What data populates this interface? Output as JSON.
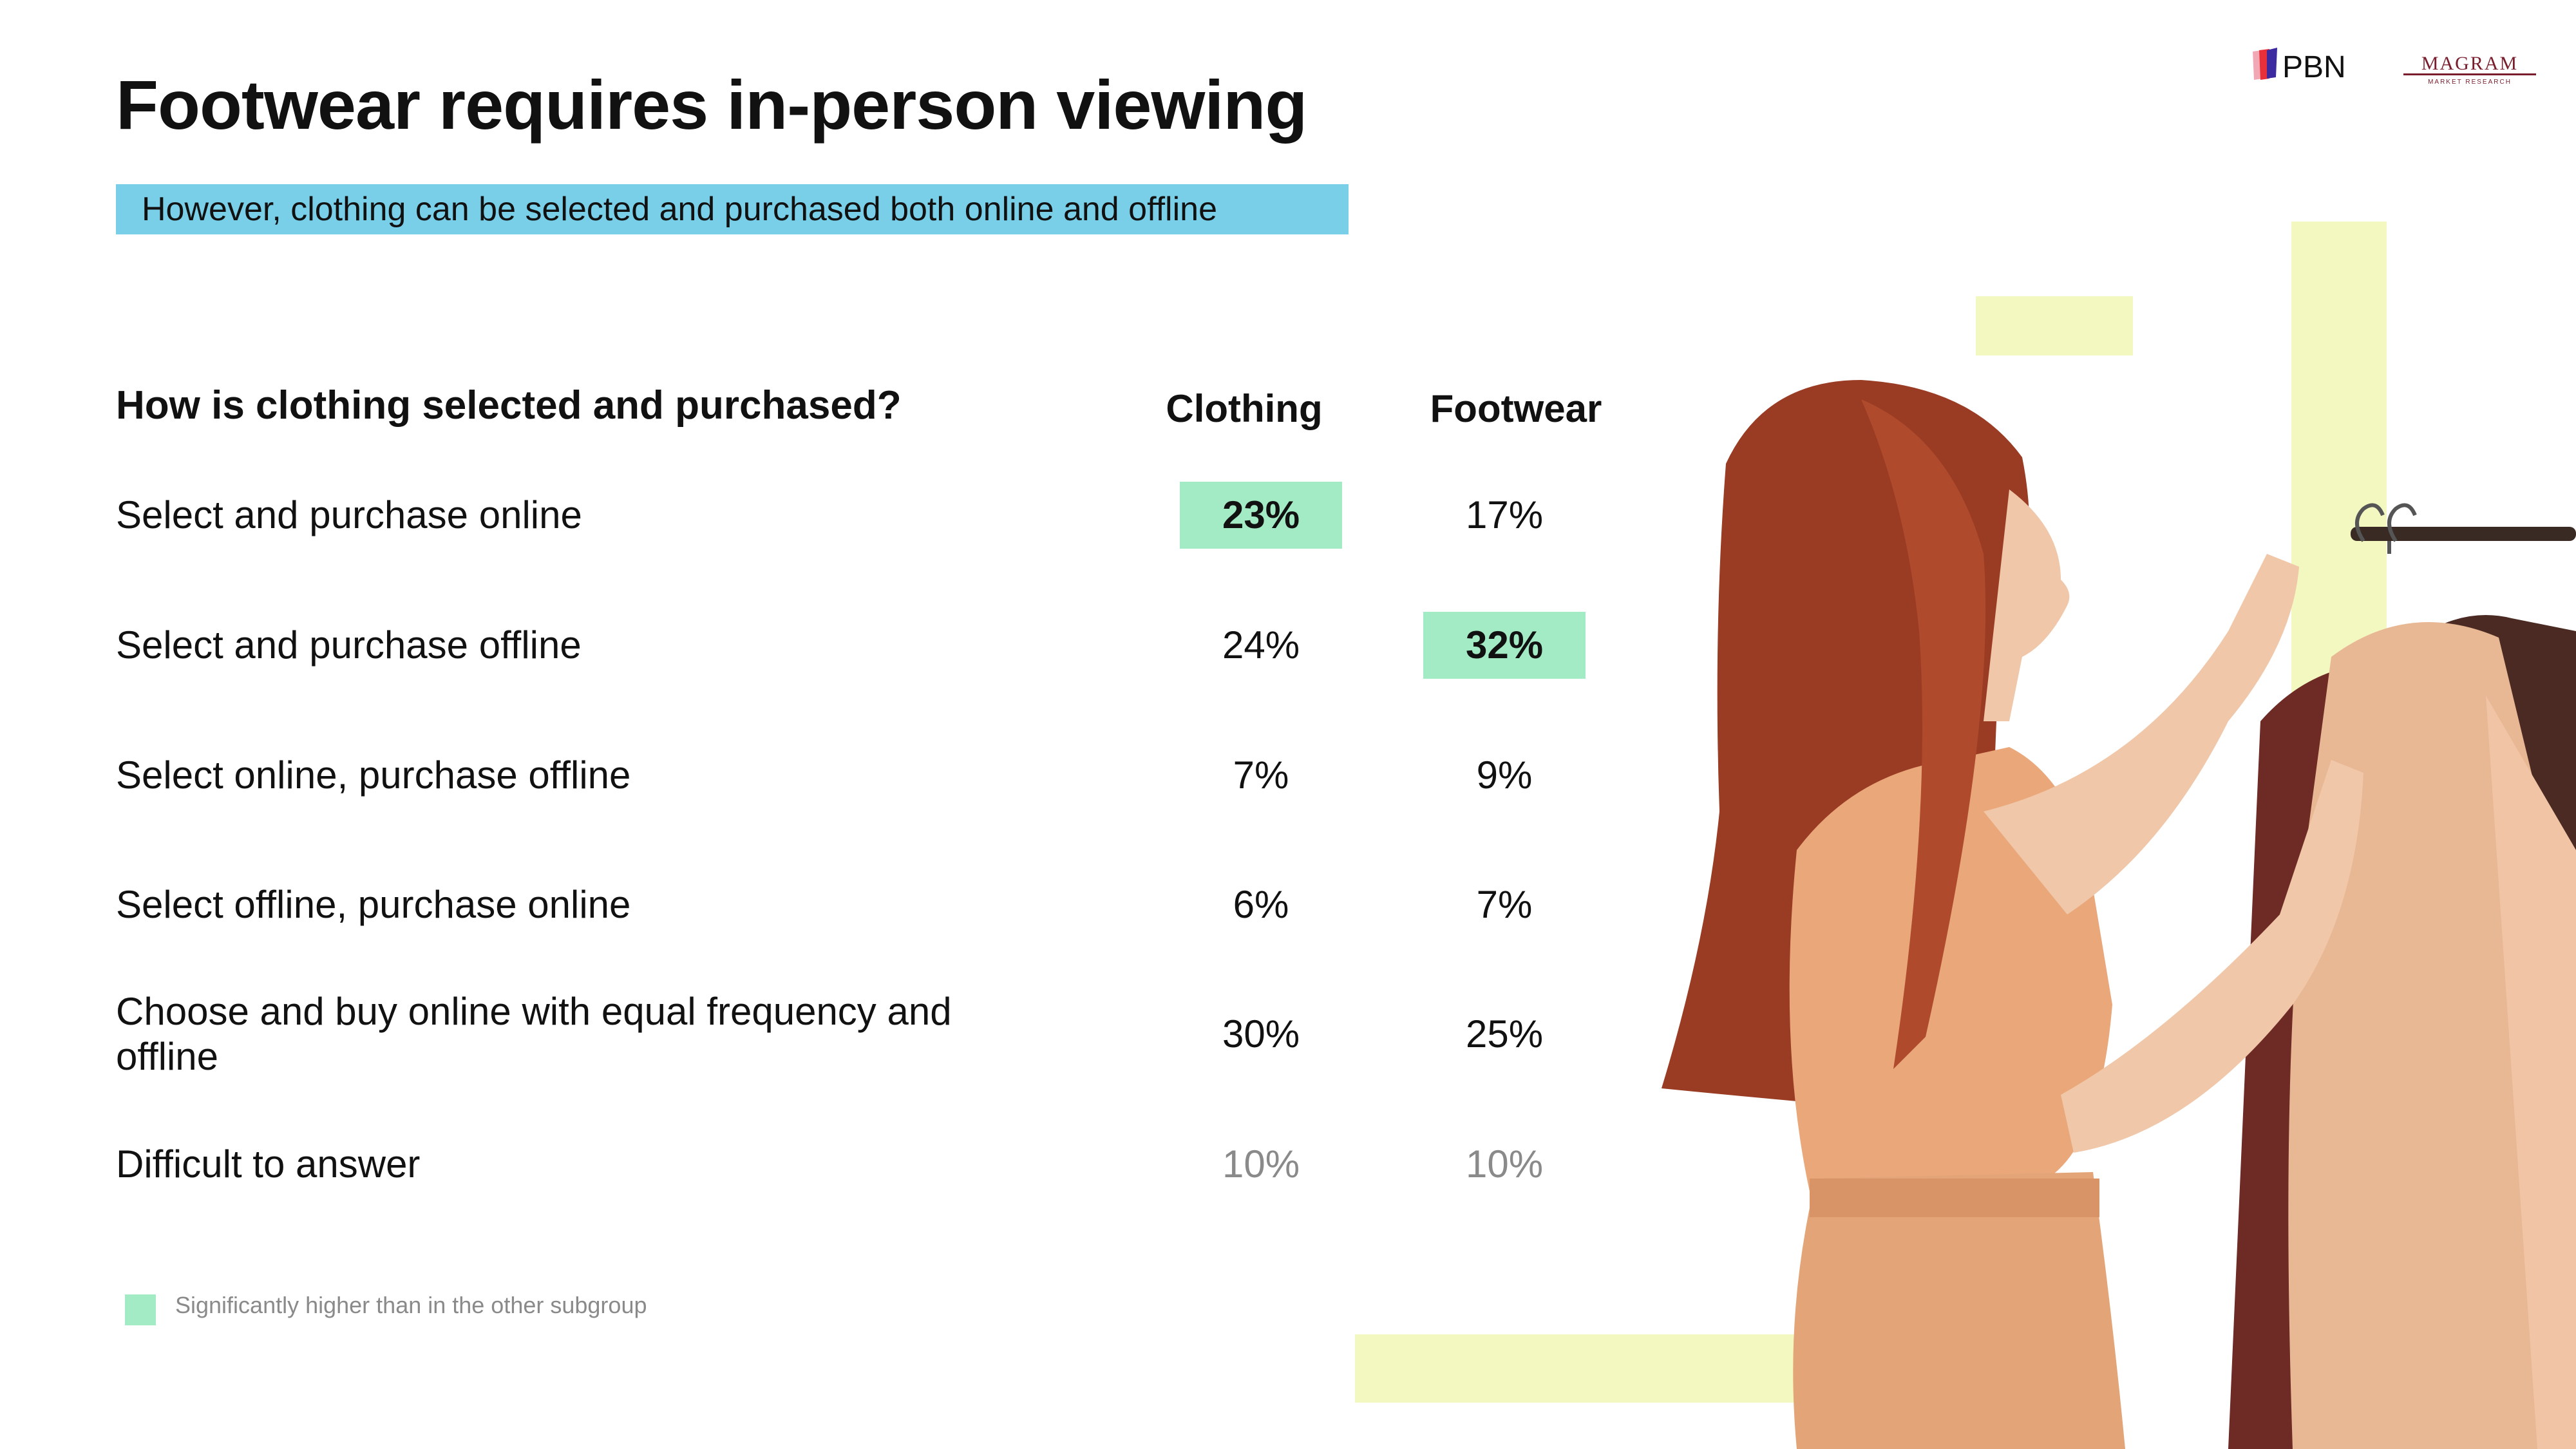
{
  "title": "Footwear requires in-person viewing",
  "subtitle": "However, clothing can be selected and purchased both online and offline",
  "logos": {
    "pbn": "PBN",
    "magram": "MAGRAM",
    "magram_sub": "MARKET RESEARCH"
  },
  "colors": {
    "highlight": "#a3ebc4",
    "subtitle_bg": "#79cfe8",
    "decor": "#f3f7c0"
  },
  "chart_data": {
    "type": "table",
    "title": "How is clothing selected and purchased?",
    "columns": [
      "Clothing",
      "Footwear"
    ],
    "rows": [
      {
        "label": "Select and purchase online",
        "values": [
          "23%",
          "17%"
        ],
        "significant": [
          true,
          false
        ]
      },
      {
        "label": "Select and purchase offline",
        "values": [
          "24%",
          "32%"
        ],
        "significant": [
          false,
          true
        ]
      },
      {
        "label": "Select online, purchase offline",
        "values": [
          "7%",
          "9%"
        ],
        "significant": [
          false,
          false
        ]
      },
      {
        "label": "Select offline, purchase online",
        "values": [
          "6%",
          "7%"
        ],
        "significant": [
          false,
          false
        ]
      },
      {
        "label": "Choose and buy online with equal frequency and offline",
        "values": [
          "30%",
          "25%"
        ],
        "significant": [
          false,
          false
        ]
      },
      {
        "label": "Difficult to answer",
        "values": [
          "10%",
          "10%"
        ],
        "significant": [
          false,
          false
        ]
      }
    ]
  },
  "legend": {
    "text": "Significantly higher than in the other subgroup"
  }
}
